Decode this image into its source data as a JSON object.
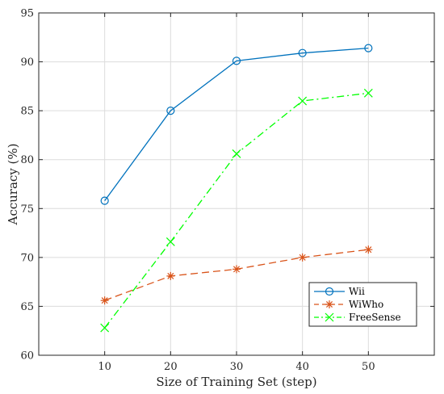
{
  "chart_data": {
    "type": "line",
    "xlabel": "Size of Training Set (step)",
    "ylabel": "Accuracy (%)",
    "xlim": [
      0,
      60
    ],
    "ylim": [
      60,
      95
    ],
    "xticks": [
      10,
      20,
      30,
      40,
      50
    ],
    "yticks": [
      60,
      65,
      70,
      75,
      80,
      85,
      90,
      95
    ],
    "grid": true,
    "legend_position": "bottom-right",
    "x": [
      10,
      20,
      30,
      40,
      50
    ],
    "series": [
      {
        "name": "Wii",
        "values": [
          75.8,
          85.0,
          90.1,
          90.9,
          91.4
        ],
        "color": "#0072BD",
        "marker": "circle",
        "dash": "solid"
      },
      {
        "name": "WiWho",
        "values": [
          65.6,
          68.1,
          68.8,
          70.0,
          70.8
        ],
        "color": "#D95319",
        "marker": "asterisk",
        "dash": "dashed"
      },
      {
        "name": "FreeSense",
        "values": [
          62.8,
          71.6,
          80.6,
          86.0,
          86.8
        ],
        "color": "#00FF00",
        "marker": "cross",
        "dash": "dashdot"
      }
    ]
  }
}
